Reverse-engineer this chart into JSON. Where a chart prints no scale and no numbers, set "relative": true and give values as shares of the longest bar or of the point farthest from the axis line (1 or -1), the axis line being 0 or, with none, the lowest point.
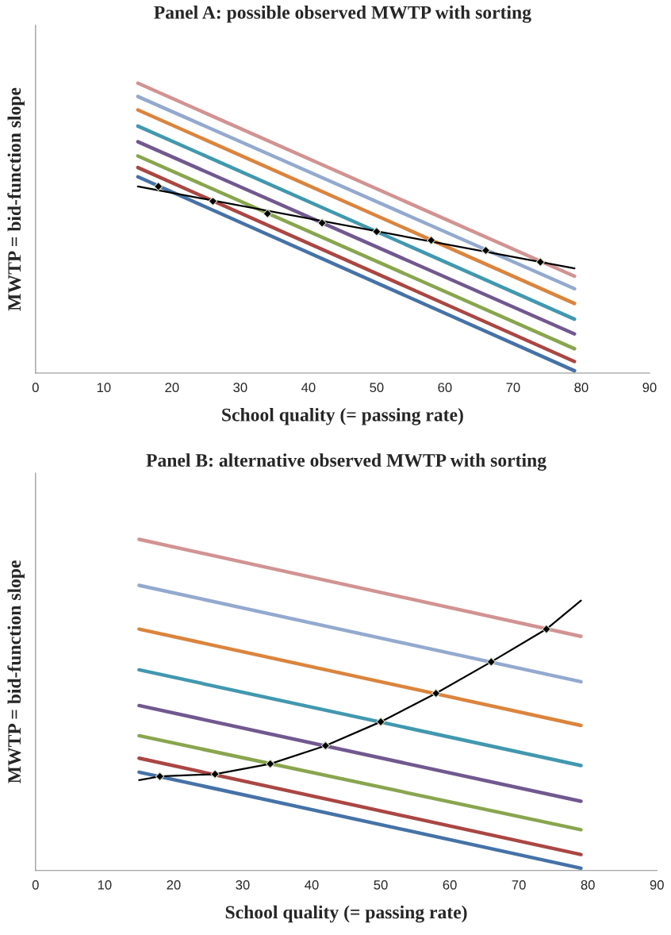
{
  "chart_data": [
    {
      "type": "line",
      "title": "Panel A: possible observed MWTP with sorting",
      "xlabel": "School quality (= passing rate)",
      "ylabel": "MWTP = bid-function slope",
      "relative": true,
      "xlim": [
        0,
        90
      ],
      "xticks": [
        0,
        10,
        20,
        30,
        40,
        50,
        60,
        70,
        80,
        90
      ],
      "grid": false,
      "legend": false,
      "series": [
        {
          "color": "#4572a7",
          "x": [
            15,
            79
          ],
          "values": [
            0.677,
            0.008
          ]
        },
        {
          "color": "#aa4643",
          "x": [
            15,
            79
          ],
          "values": [
            0.709,
            0.04
          ]
        },
        {
          "color": "#89a54e",
          "x": [
            15,
            79
          ],
          "values": [
            0.749,
            0.084
          ]
        },
        {
          "color": "#71588f",
          "x": [
            15,
            79
          ],
          "values": [
            0.798,
            0.135
          ]
        },
        {
          "color": "#4198af",
          "x": [
            15,
            79
          ],
          "values": [
            0.852,
            0.186
          ]
        },
        {
          "color": "#db843d",
          "x": [
            15,
            79
          ],
          "values": [
            0.908,
            0.24
          ]
        },
        {
          "color": "#93a9cf",
          "x": [
            15,
            79
          ],
          "values": [
            0.954,
            0.291
          ]
        },
        {
          "color": "#d19392",
          "x": [
            15,
            79
          ],
          "values": [
            1.0,
            0.334
          ]
        },
        {
          "color": "#000000",
          "x": [
            15,
            79
          ],
          "values": [
            0.644,
            0.361
          ]
        },
        {
          "type": "scatter",
          "marker": "diamond",
          "color": "#000000",
          "x": [
            18,
            26,
            34,
            42,
            50,
            58,
            66,
            74
          ],
          "values": [
            0.644,
            0.593,
            0.55,
            0.518,
            0.488,
            0.458,
            0.423,
            0.383
          ]
        }
      ]
    },
    {
      "type": "line",
      "title": "Panel B: alternative observed MWTP with sorting",
      "xlabel": "School quality (= passing rate)",
      "ylabel": "MWTP = bid-function slope",
      "relative": true,
      "xlim": [
        0,
        90
      ],
      "xticks": [
        0,
        10,
        20,
        30,
        40,
        50,
        60,
        70,
        80,
        90
      ],
      "grid": false,
      "legend": false,
      "series": [
        {
          "color": "#4572a7",
          "x": [
            15,
            79
          ],
          "values": [
            0.297,
            0.007
          ]
        },
        {
          "color": "#aa4643",
          "x": [
            15,
            79
          ],
          "values": [
            0.339,
            0.048
          ]
        },
        {
          "color": "#89a54e",
          "x": [
            15,
            79
          ],
          "values": [
            0.407,
            0.123
          ]
        },
        {
          "color": "#71588f",
          "x": [
            15,
            79
          ],
          "values": [
            0.498,
            0.209
          ]
        },
        {
          "color": "#4198af",
          "x": [
            15,
            79
          ],
          "values": [
            0.606,
            0.317
          ]
        },
        {
          "color": "#db843d",
          "x": [
            15,
            79
          ],
          "values": [
            0.729,
            0.438
          ]
        },
        {
          "color": "#93a9cf",
          "x": [
            15,
            79
          ],
          "values": [
            0.861,
            0.57
          ]
        },
        {
          "color": "#d19392",
          "x": [
            15,
            79
          ],
          "values": [
            1.0,
            0.707
          ]
        },
        {
          "color": "#000000",
          "x": [
            15,
            18,
            26,
            34,
            42,
            50,
            58,
            66,
            74,
            79
          ],
          "values": [
            0.273,
            0.284,
            0.291,
            0.322,
            0.377,
            0.449,
            0.535,
            0.63,
            0.729,
            0.815
          ]
        },
        {
          "type": "scatter",
          "marker": "diamond",
          "color": "#000000",
          "x": [
            18,
            26,
            34,
            42,
            50,
            58,
            66,
            74
          ],
          "values": [
            0.284,
            0.291,
            0.322,
            0.377,
            0.449,
            0.535,
            0.63,
            0.729
          ]
        }
      ]
    }
  ]
}
